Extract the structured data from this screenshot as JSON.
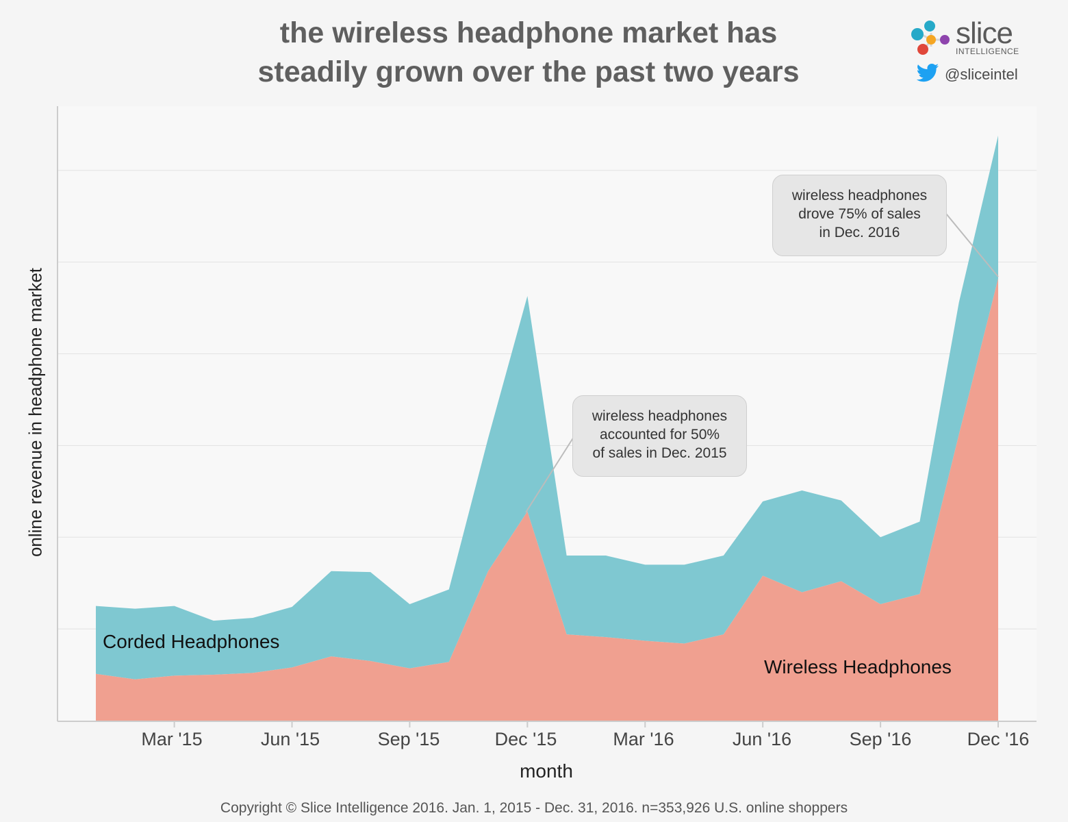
{
  "title": [
    "the wireless headphone market has",
    "steadily grown over the past two years"
  ],
  "brand": {
    "name": "slice",
    "sub": "INTELLIGENCE",
    "twitter": "@sliceintel"
  },
  "colors": {
    "wireless": "#f0a090",
    "corded": "#7fc8d1",
    "grid": "#e2e2e2",
    "axis": "#cccccc"
  },
  "chart_data": {
    "type": "area",
    "stacked": true,
    "x": [
      "Jan '15",
      "Feb '15",
      "Mar '15",
      "Apr '15",
      "May '15",
      "Jun '15",
      "Jul '15",
      "Aug '15",
      "Sep '15",
      "Oct '15",
      "Nov '15",
      "Dec '15",
      "Jan '16",
      "Feb '16",
      "Mar '16",
      "Apr '16",
      "May '16",
      "Jun '16",
      "Jul '16",
      "Aug '16",
      "Sep '16",
      "Oct '16",
      "Nov '16",
      "Dec '16"
    ],
    "tick_labels": [
      "Mar '15",
      "Jun '15",
      "Sep '15",
      "Dec '15",
      "Mar '16",
      "Jun '16",
      "Sep '16",
      "Dec '16"
    ],
    "xlabel": "month",
    "ylabel": "online revenue in headphone market",
    "ylim": [
      0,
      6.7
    ],
    "grid": true,
    "series": [
      {
        "name": "Wireless Headphones",
        "values": [
          0.51,
          0.45,
          0.49,
          0.5,
          0.52,
          0.58,
          0.7,
          0.65,
          0.57,
          0.64,
          1.63,
          2.28,
          0.94,
          0.91,
          0.87,
          0.84,
          0.94,
          1.58,
          1.4,
          1.52,
          1.27,
          1.38,
          3.12,
          4.82
        ]
      },
      {
        "name": "Corded Headphones",
        "values": [
          0.74,
          0.77,
          0.76,
          0.59,
          0.6,
          0.66,
          0.93,
          0.97,
          0.7,
          0.79,
          1.45,
          2.35,
          0.86,
          0.89,
          0.83,
          0.86,
          0.86,
          0.81,
          1.11,
          0.88,
          0.73,
          0.79,
          1.44,
          1.56
        ]
      }
    ],
    "annotations": [
      {
        "lines": [
          "wireless headphones",
          "accounted for 50%",
          "of sales in Dec. 2015"
        ]
      },
      {
        "lines": [
          "wireless headphones",
          "drove 75% of sales",
          "in Dec. 2016"
        ]
      }
    ]
  },
  "footer": "Copyright © Slice Intelligence 2016. Jan. 1, 2015 - Dec. 31, 2016. n=353,926 U.S. online shoppers"
}
